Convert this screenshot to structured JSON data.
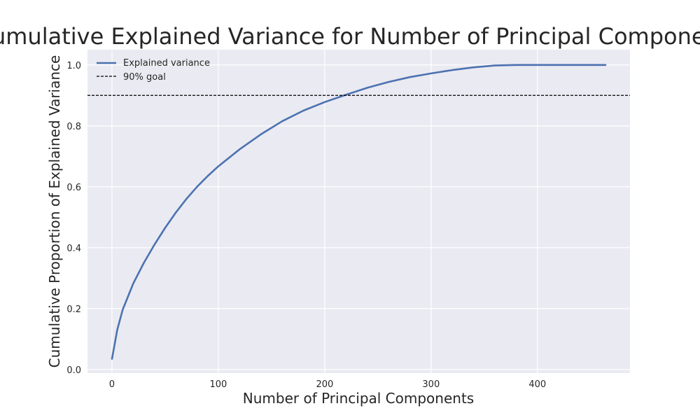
{
  "chart_data": {
    "type": "line",
    "title": "Cumulative Explained Variance for Number of Principal Component",
    "xlabel": "Number of Principal Components",
    "ylabel": "Cumulative Proportion of Explained Variance",
    "xlim": [
      -23,
      487
    ],
    "ylim": [
      -0.012,
      1.05
    ],
    "xticks": [
      0,
      100,
      200,
      300,
      400
    ],
    "xtick_labels": [
      "0",
      "100",
      "200",
      "300",
      "400"
    ],
    "yticks": [
      0.0,
      0.2,
      0.4,
      0.6,
      0.8,
      1.0
    ],
    "ytick_labels": [
      "0.0",
      "0.2",
      "0.4",
      "0.6",
      "0.8",
      "1.0"
    ],
    "grid": true,
    "legend_position": "top-left",
    "series": [
      {
        "name": "Explained variance",
        "color": "#4c72b0",
        "style": "solid",
        "x": [
          0,
          5,
          10,
          20,
          30,
          40,
          50,
          60,
          70,
          80,
          90,
          100,
          120,
          140,
          160,
          180,
          200,
          220,
          240,
          260,
          280,
          300,
          320,
          340,
          360,
          380,
          400,
          420,
          440,
          464
        ],
        "y": [
          0.035,
          0.13,
          0.195,
          0.282,
          0.35,
          0.41,
          0.465,
          0.515,
          0.56,
          0.6,
          0.635,
          0.667,
          0.723,
          0.772,
          0.815,
          0.85,
          0.878,
          0.902,
          0.925,
          0.944,
          0.96,
          0.972,
          0.983,
          0.992,
          0.998,
          1.0,
          1.0,
          1.0,
          1.0,
          1.0
        ]
      },
      {
        "name": "90% goal",
        "color": "#000000",
        "style": "dashed",
        "y_constant": 0.9
      }
    ]
  }
}
